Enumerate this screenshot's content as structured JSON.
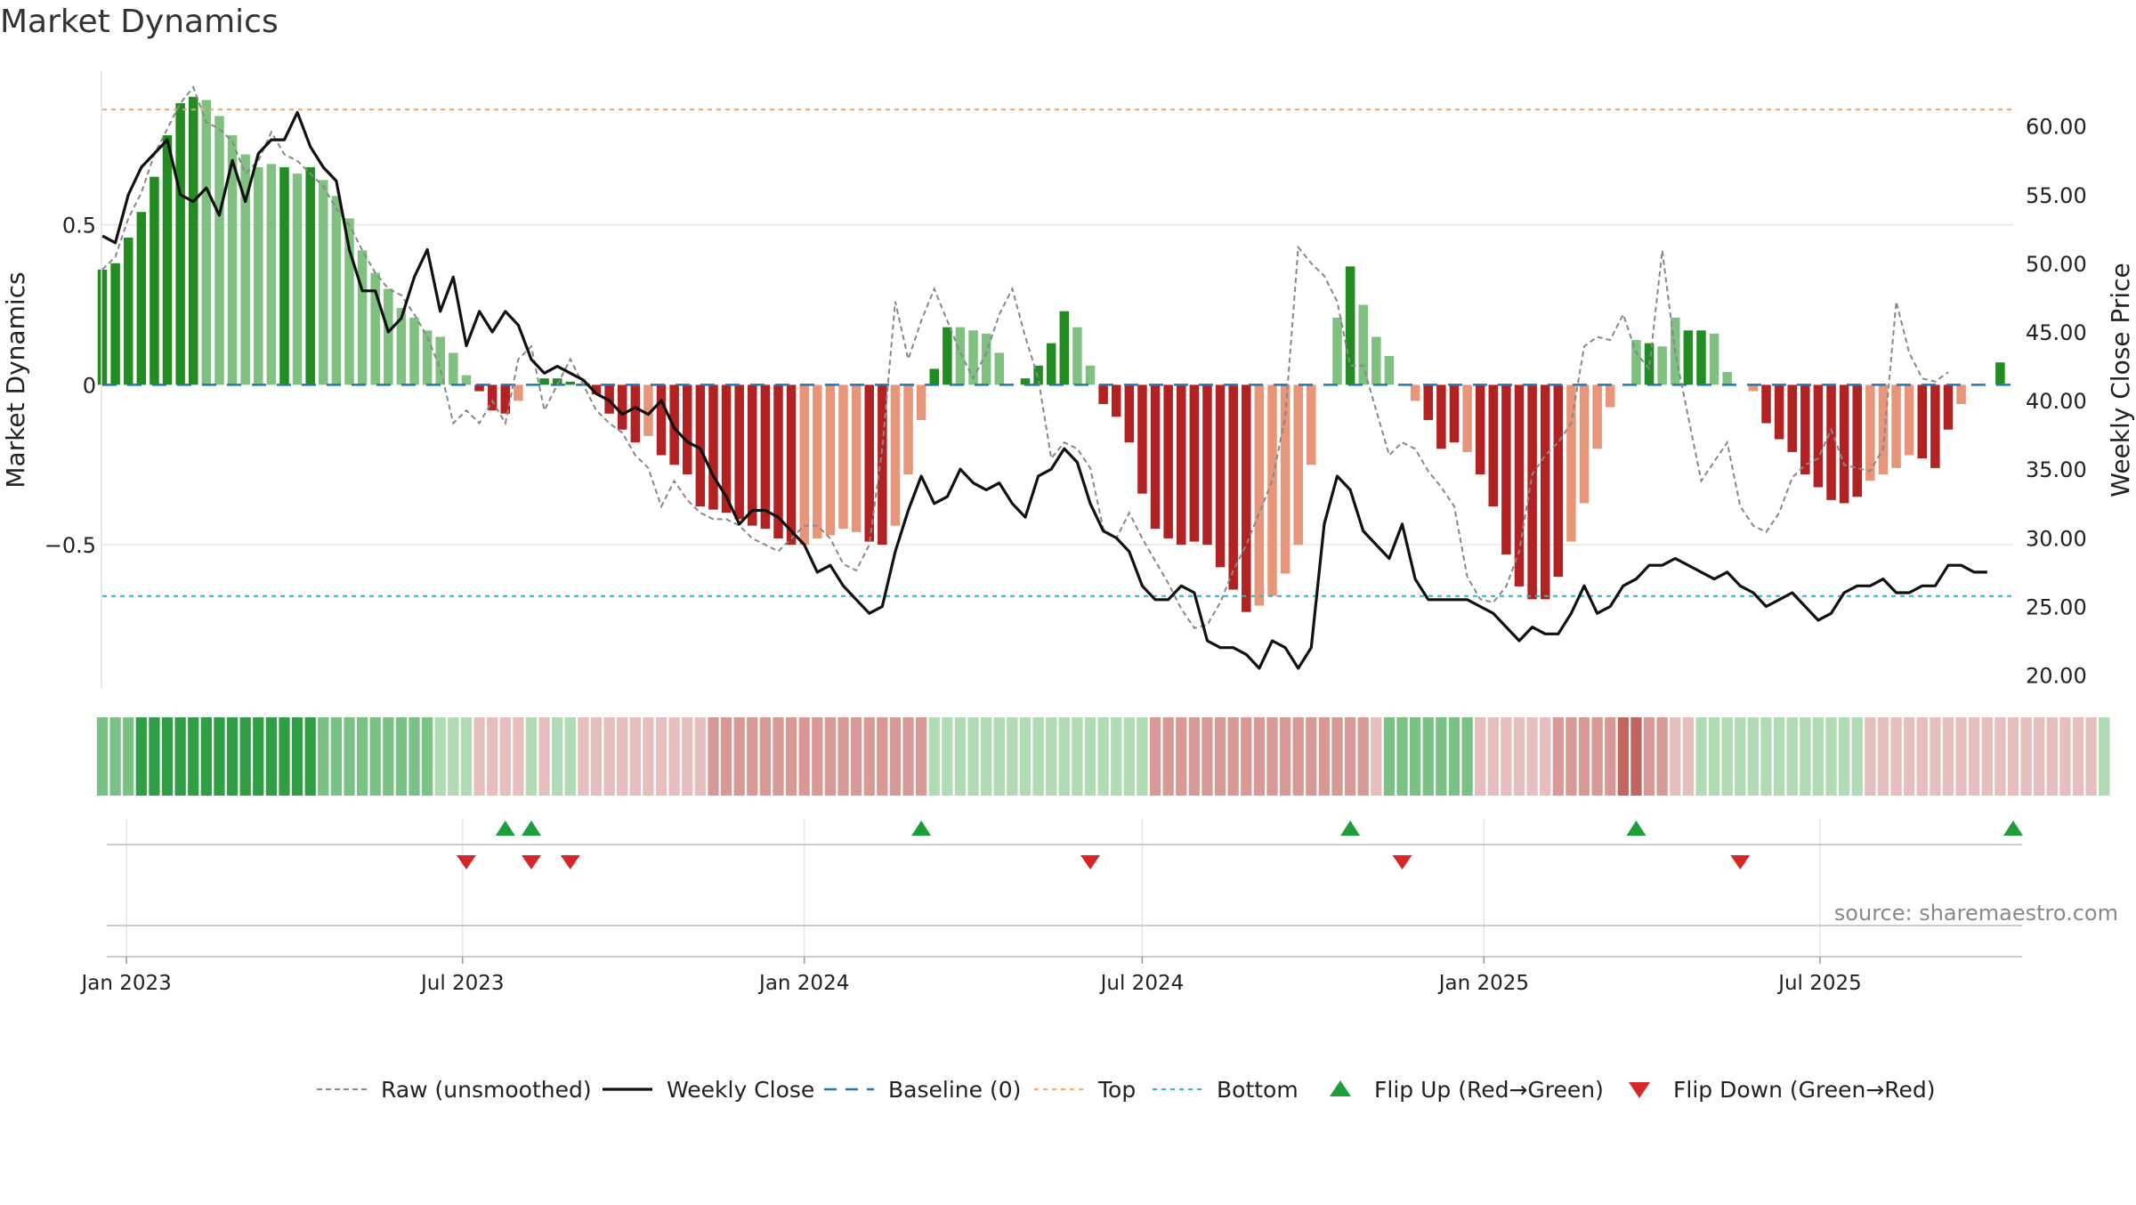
{
  "chart_data": {
    "type": "bar",
    "title": "Market Dynamics",
    "source": "source: sharemaestro.com",
    "ylabel": "Market Dynamics",
    "y2label": "Weekly Close Price",
    "ylim": [
      -0.95,
      0.98
    ],
    "y2lim": [
      19.0,
      64.0
    ],
    "yticks": [
      {
        "v": 0.5,
        "label": "0.5"
      },
      {
        "v": 0,
        "label": "0"
      },
      {
        "v": -0.5,
        "label": "−0.5"
      }
    ],
    "y2ticks": [
      {
        "v": 60,
        "label": "60.00"
      },
      {
        "v": 55,
        "label": "55.00"
      },
      {
        "v": 50,
        "label": "50.00"
      },
      {
        "v": 45,
        "label": "45.00"
      },
      {
        "v": 40,
        "label": "40.00"
      },
      {
        "v": 35,
        "label": "35.00"
      },
      {
        "v": 30,
        "label": "30.00"
      },
      {
        "v": 25,
        "label": "25.00"
      },
      {
        "v": 20,
        "label": "20.00"
      }
    ],
    "x_start": "2022-12-19",
    "x_end": "2025-10-13",
    "xticks": [
      {
        "date": "2023-01-01",
        "label": "Jan 2023"
      },
      {
        "date": "2023-07-01",
        "label": "Jul 2023"
      },
      {
        "date": "2024-01-01",
        "label": "Jan 2024"
      },
      {
        "date": "2024-07-01",
        "label": "Jul 2024"
      },
      {
        "date": "2025-01-01",
        "label": "Jan 2025"
      },
      {
        "date": "2025-07-01",
        "label": "Jul 2025"
      }
    ],
    "top_level": 0.86,
    "bottom_level": -0.66,
    "baseline": 0,
    "weeks_start": "2022-12-19",
    "week_interval_days": 7,
    "momentum": [
      0.36,
      0.38,
      0.46,
      0.54,
      0.65,
      0.78,
      0.88,
      0.9,
      0.89,
      0.84,
      0.78,
      0.72,
      0.68,
      0.69,
      0.68,
      0.66,
      0.68,
      0.64,
      0.59,
      0.52,
      0.42,
      0.35,
      0.3,
      0.24,
      0.21,
      0.17,
      0.15,
      0.1,
      0.03,
      -0.02,
      -0.08,
      -0.09,
      -0.05,
      0.0,
      0.02,
      0.02,
      0.01,
      0.0,
      -0.03,
      -0.09,
      -0.14,
      -0.18,
      -0.16,
      -0.22,
      -0.25,
      -0.28,
      -0.38,
      -0.39,
      -0.4,
      -0.42,
      -0.44,
      -0.45,
      -0.48,
      -0.5,
      -0.5,
      -0.48,
      -0.47,
      -0.45,
      -0.46,
      -0.49,
      -0.5,
      -0.44,
      -0.28,
      -0.11,
      0.05,
      0.18,
      0.18,
      0.17,
      0.16,
      0.1,
      0.0,
      0.02,
      0.06,
      0.13,
      0.23,
      0.18,
      0.06,
      -0.06,
      -0.1,
      -0.18,
      -0.34,
      -0.45,
      -0.48,
      -0.5,
      -0.49,
      -0.5,
      -0.57,
      -0.64,
      -0.71,
      -0.69,
      -0.66,
      -0.59,
      -0.5,
      -0.25,
      0.0,
      0.21,
      0.37,
      0.25,
      0.15,
      0.09,
      0.0,
      -0.05,
      -0.11,
      -0.2,
      -0.18,
      -0.21,
      -0.28,
      -0.38,
      -0.53,
      -0.63,
      -0.67,
      -0.67,
      -0.6,
      -0.49,
      -0.37,
      -0.2,
      -0.07,
      0.0,
      0.14,
      0.13,
      0.12,
      0.21,
      0.17,
      0.17,
      0.16,
      0.04,
      0.0,
      -0.02,
      -0.12,
      -0.17,
      -0.21,
      -0.28,
      -0.32,
      -0.36,
      -0.37,
      -0.35,
      -0.3,
      -0.28,
      -0.26,
      -0.22,
      -0.23,
      -0.26,
      -0.14,
      -0.06,
      0.0,
      0.0,
      0.07
    ],
    "momentum_tone": [
      "d",
      "d",
      "d",
      "d",
      "d",
      "d",
      "d",
      "d",
      "l",
      "l",
      "l",
      "l",
      "l",
      "l",
      "d",
      "l",
      "d",
      "l",
      "l",
      "l",
      "l",
      "l",
      "l",
      "l",
      "l",
      "l",
      "l",
      "l",
      "l",
      "d",
      "d",
      "d",
      "l",
      "d",
      "d",
      "d",
      "d",
      "d",
      "d",
      "d",
      "d",
      "d",
      "l",
      "d",
      "d",
      "d",
      "d",
      "d",
      "d",
      "d",
      "d",
      "d",
      "d",
      "d",
      "l",
      "l",
      "l",
      "l",
      "l",
      "d",
      "d",
      "l",
      "l",
      "l",
      "d",
      "d",
      "l",
      "l",
      "l",
      "l",
      "d",
      "d",
      "d",
      "d",
      "d",
      "l",
      "l",
      "d",
      "d",
      "d",
      "d",
      "d",
      "d",
      "d",
      "d",
      "d",
      "d",
      "d",
      "d",
      "l",
      "l",
      "l",
      "l",
      "l",
      "l",
      "l",
      "d",
      "l",
      "l",
      "l",
      "l",
      "l",
      "d",
      "d",
      "d",
      "l",
      "d",
      "d",
      "d",
      "d",
      "d",
      "d",
      "d",
      "l",
      "l",
      "l",
      "l",
      "l",
      "l",
      "d",
      "l",
      "l",
      "d",
      "d",
      "l",
      "l",
      "l",
      "l",
      "d",
      "d",
      "d",
      "d",
      "d",
      "d",
      "d",
      "d",
      "l",
      "l",
      "l",
      "l",
      "d",
      "d",
      "d",
      "l",
      "l",
      "l",
      "d"
    ],
    "raw_momentum": [
      0.36,
      0.4,
      0.52,
      0.6,
      0.72,
      0.8,
      0.88,
      0.93,
      0.82,
      0.8,
      0.76,
      0.66,
      0.7,
      0.79,
      0.72,
      0.7,
      0.66,
      0.62,
      0.55,
      0.5,
      0.42,
      0.35,
      0.3,
      0.28,
      0.22,
      0.15,
      0.05,
      -0.12,
      -0.08,
      -0.12,
      -0.05,
      -0.12,
      0.08,
      0.12,
      -0.08,
      0.0,
      0.08,
      0.0,
      -0.08,
      -0.12,
      -0.15,
      -0.22,
      -0.26,
      -0.38,
      -0.3,
      -0.36,
      -0.4,
      -0.42,
      -0.42,
      -0.44,
      -0.48,
      -0.5,
      -0.52,
      -0.48,
      -0.44,
      -0.44,
      -0.48,
      -0.56,
      -0.58,
      -0.5,
      -0.2,
      0.26,
      0.08,
      0.2,
      0.3,
      0.2,
      0.1,
      0.02,
      0.1,
      0.22,
      0.3,
      0.15,
      0.02,
      -0.23,
      -0.18,
      -0.2,
      -0.26,
      -0.45,
      -0.48,
      -0.4,
      -0.48,
      -0.55,
      -0.62,
      -0.7,
      -0.76,
      -0.75,
      -0.68,
      -0.58,
      -0.5,
      -0.4,
      -0.3,
      -0.1,
      0.43,
      0.38,
      0.34,
      0.26,
      0.06,
      0.06,
      -0.08,
      -0.22,
      -0.18,
      -0.2,
      -0.27,
      -0.32,
      -0.38,
      -0.6,
      -0.67,
      -0.68,
      -0.63,
      -0.52,
      -0.28,
      -0.22,
      -0.18,
      -0.12,
      0.12,
      0.15,
      0.14,
      0.22,
      0.1,
      0.05,
      0.42,
      0.1,
      -0.1,
      -0.3,
      -0.24,
      -0.18,
      -0.38,
      -0.44,
      -0.46,
      -0.4,
      -0.29,
      -0.25,
      -0.23,
      -0.14,
      -0.25,
      -0.26,
      -0.27,
      -0.2,
      0.26,
      0.1,
      0.02,
      0.01,
      0.04
    ],
    "weekly_close": [
      52.0,
      51.5,
      55.0,
      57.0,
      58.0,
      59.0,
      55.0,
      54.5,
      55.5,
      53.5,
      57.5,
      54.5,
      58.0,
      59.0,
      59.0,
      61.0,
      58.5,
      57.0,
      56.0,
      51.0,
      48.0,
      48.0,
      45.0,
      46.0,
      49.0,
      51.0,
      46.5,
      49.0,
      44.0,
      46.5,
      45.0,
      46.5,
      45.5,
      43.0,
      42.0,
      42.5,
      42.0,
      41.5,
      40.5,
      40.0,
      39.0,
      39.5,
      39.0,
      40.0,
      38.0,
      37.0,
      36.5,
      34.5,
      33.0,
      31.0,
      32.0,
      32.0,
      31.5,
      30.5,
      29.5,
      27.5,
      28.0,
      26.5,
      25.5,
      24.5,
      25.0,
      29.0,
      32.0,
      34.5,
      32.5,
      33.0,
      35.0,
      34.0,
      33.5,
      34.0,
      32.5,
      31.5,
      34.5,
      35.0,
      36.5,
      35.5,
      32.5,
      30.5,
      30.0,
      29.0,
      26.5,
      25.5,
      25.5,
      26.5,
      26.0,
      22.5,
      22.0,
      22.0,
      21.5,
      20.5,
      22.5,
      22.0,
      20.5,
      22.0,
      31.0,
      34.5,
      33.5,
      30.5,
      29.5,
      28.5,
      31.0,
      27.0,
      25.5,
      25.5,
      25.5,
      25.5,
      25.0,
      24.5,
      23.5,
      22.5,
      23.5,
      23.0,
      23.0,
      24.5,
      26.5,
      24.5,
      25.0,
      26.5,
      27.0,
      28.0,
      28.0,
      28.5,
      28.0,
      27.5,
      27.0,
      27.5,
      26.5,
      26.0,
      25.0,
      25.5,
      26.0,
      25.0,
      24.0,
      24.5,
      26.0,
      26.5,
      26.5,
      27.0,
      26.0,
      26.0,
      26.5,
      26.5,
      28.0,
      28.0,
      27.5,
      27.5
    ],
    "regime": [
      2,
      2,
      2,
      3,
      3,
      3,
      3,
      3,
      3,
      3,
      3,
      3,
      3,
      3,
      3,
      3,
      3,
      2,
      2,
      2,
      2,
      2,
      2,
      2,
      2,
      2,
      1,
      1,
      1,
      -1,
      -1,
      -1,
      -1,
      1,
      -1,
      1,
      1,
      -1,
      -1,
      -1,
      -1,
      -1,
      -1,
      -1,
      -1,
      -1,
      -1,
      -2,
      -2,
      -2,
      -2,
      -2,
      -2,
      -2,
      -2,
      -2,
      -2,
      -2,
      -2,
      -2,
      -2,
      -2,
      -2,
      -2,
      1,
      1,
      1,
      1,
      1,
      1,
      1,
      1,
      1,
      1,
      1,
      1,
      1,
      1,
      1,
      1,
      1,
      -2,
      -2,
      -2,
      -2,
      -2,
      -2,
      -2,
      -2,
      -2,
      -2,
      -2,
      -2,
      -2,
      -2,
      -2,
      -2,
      -2,
      -1,
      2,
      2,
      2,
      2,
      2,
      2,
      2,
      -1,
      -1,
      -1,
      -1,
      -1,
      -1,
      -2,
      -2,
      -2,
      -2,
      -2,
      -3,
      -3,
      -2,
      -2,
      -1,
      -1,
      1,
      1,
      1,
      1,
      1,
      1,
      1,
      1,
      1,
      1,
      1,
      1,
      1,
      -1,
      -1,
      -1,
      -1,
      -1,
      -1,
      -1,
      -1,
      -1,
      -1,
      -1,
      -1,
      -1,
      -1,
      -1,
      -1,
      -1,
      -1,
      1
    ],
    "flip_up": [
      "2023-07-24",
      "2023-08-07",
      "2024-03-04",
      "2024-10-21",
      "2025-03-24",
      "2025-10-13"
    ],
    "flip_down": [
      "2023-07-03",
      "2023-08-07",
      "2023-08-28",
      "2024-06-03",
      "2024-11-18",
      "2025-05-19"
    ],
    "legend": [
      {
        "key": "raw",
        "label": "Raw (unsmoothed)"
      },
      {
        "key": "close",
        "label": "Weekly Close"
      },
      {
        "key": "baseline",
        "label": "Baseline (0)"
      },
      {
        "key": "top",
        "label": "Top"
      },
      {
        "key": "bottom",
        "label": "Bottom"
      },
      {
        "key": "flipup",
        "label": "Flip Up (Red→Green)"
      },
      {
        "key": "flipdown",
        "label": "Flip Down (Green→Red)"
      }
    ],
    "legend_placement": "bottom-center",
    "grid": true,
    "colors": {
      "pos_dark": "#228B22",
      "pos_light": "#80C080",
      "neg_dark": "#B22222",
      "neg_light": "#E8967A",
      "close": "#111111",
      "raw": "#888888",
      "baseline": "#1F77B4",
      "top": "#F4A460",
      "bottom": "#17BECF",
      "flip_up": "#1E9E3A",
      "flip_down": "#D62728",
      "grid": "#E6E6E6",
      "axis_text": "#222222"
    }
  }
}
